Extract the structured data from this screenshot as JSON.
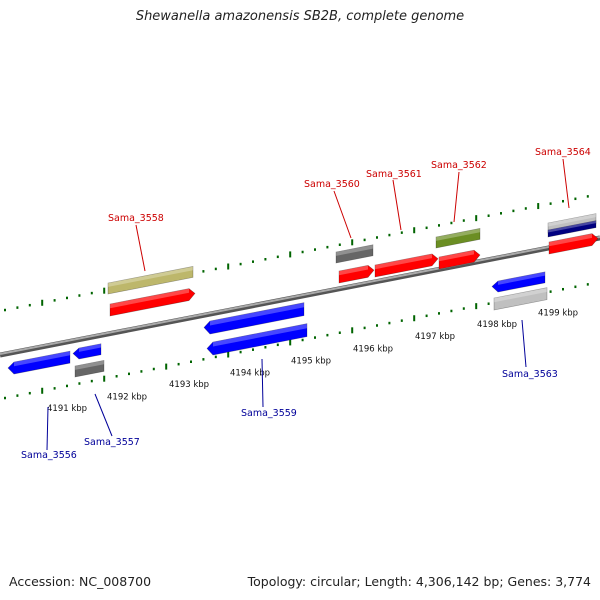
{
  "title": "Shewanella amazonensis SB2B, complete genome",
  "accession": "Accession: NC_008700",
  "topology": "Topology: circular; Length: 4,306,142 bp; Genes: 3,774",
  "scale_labels": [
    "4191 kbp",
    "4192 kbp",
    "4193 kbp",
    "4194 kbp",
    "4195 kbp",
    "4196 kbp",
    "4197 kbp",
    "4198 kbp",
    "4199 kbp"
  ],
  "colors": {
    "forward_label": "#cc0000",
    "reverse_label": "#000099",
    "red": "#ff0000",
    "blue": "#0000ff",
    "gray": "#666666",
    "khaki": "#bdb76b",
    "olive": "#6b8e23",
    "navy": "#000080",
    "silver": "#c0c0c0",
    "tick": "#006400",
    "axis": "#8a8a8a"
  },
  "genes_forward": [
    "Sama_3558",
    "Sama_3560",
    "Sama_3561",
    "Sama_3562",
    "Sama_3564"
  ],
  "genes_reverse": [
    "Sama_3556",
    "Sama_3557",
    "Sama_3559",
    "Sama_3563"
  ]
}
